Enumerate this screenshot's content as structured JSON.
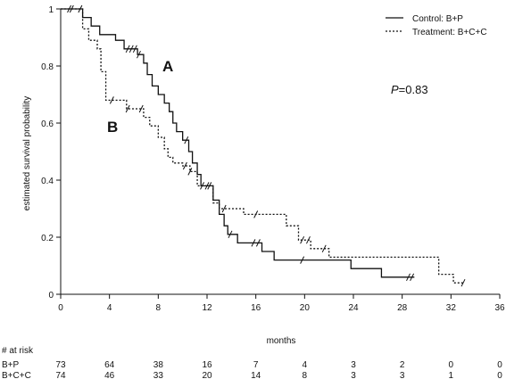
{
  "chart_data": {
    "type": "line",
    "title": "",
    "xlabel": "months",
    "ylabel": "estimated survival probability",
    "xlim": [
      0,
      36
    ],
    "ylim": [
      0,
      1
    ],
    "x_ticks": [
      0,
      4,
      8,
      12,
      16,
      20,
      24,
      28,
      32,
      36
    ],
    "y_ticks": [
      0,
      0.2,
      0.4,
      0.6,
      0.8,
      1
    ],
    "y_tick_labels": [
      "0",
      "0.2",
      "0.4",
      "0.6",
      "0.8",
      "1"
    ],
    "grid": false,
    "legend_position": "top-right",
    "series": [
      {
        "name": "Control: B+P",
        "style": "solid",
        "curve_label": "A",
        "steps": [
          [
            0,
            1.0
          ],
          [
            1.8,
            0.97
          ],
          [
            2.5,
            0.94
          ],
          [
            3.2,
            0.91
          ],
          [
            4.5,
            0.89
          ],
          [
            5.2,
            0.86
          ],
          [
            6.3,
            0.84
          ],
          [
            6.8,
            0.81
          ],
          [
            7.1,
            0.77
          ],
          [
            7.5,
            0.73
          ],
          [
            8.0,
            0.7
          ],
          [
            8.5,
            0.67
          ],
          [
            8.9,
            0.64
          ],
          [
            9.2,
            0.6
          ],
          [
            9.5,
            0.57
          ],
          [
            10.0,
            0.54
          ],
          [
            10.5,
            0.5
          ],
          [
            10.8,
            0.46
          ],
          [
            11.2,
            0.42
          ],
          [
            11.5,
            0.38
          ],
          [
            12.5,
            0.33
          ],
          [
            13.0,
            0.28
          ],
          [
            13.4,
            0.24
          ],
          [
            13.7,
            0.21
          ],
          [
            14.5,
            0.18
          ],
          [
            16.5,
            0.15
          ],
          [
            17.5,
            0.12
          ],
          [
            23.8,
            0.09
          ],
          [
            26.3,
            0.06
          ],
          [
            29.0,
            0.06
          ]
        ],
        "censor_marks": [
          0.7,
          5.5,
          5.8,
          6.1,
          6.4,
          10.3,
          11.6,
          12.0,
          13.9,
          15.8,
          16.2,
          19.8,
          28.5,
          28.8
        ]
      },
      {
        "name": "Treatment: B+C+C",
        "style": "dotted",
        "curve_label": "B",
        "steps": [
          [
            0,
            1.0
          ],
          [
            1.8,
            0.93
          ],
          [
            2.3,
            0.89
          ],
          [
            3.0,
            0.86
          ],
          [
            3.3,
            0.78
          ],
          [
            3.7,
            0.68
          ],
          [
            5.4,
            0.65
          ],
          [
            6.8,
            0.62
          ],
          [
            7.3,
            0.59
          ],
          [
            8.0,
            0.55
          ],
          [
            8.5,
            0.51
          ],
          [
            8.8,
            0.48
          ],
          [
            9.2,
            0.46
          ],
          [
            10.0,
            0.45
          ],
          [
            10.6,
            0.43
          ],
          [
            11.2,
            0.38
          ],
          [
            12.5,
            0.32
          ],
          [
            13.0,
            0.3
          ],
          [
            15.0,
            0.28
          ],
          [
            16.5,
            0.28
          ],
          [
            18.5,
            0.24
          ],
          [
            19.5,
            0.19
          ],
          [
            20.5,
            0.16
          ],
          [
            22.0,
            0.13
          ],
          [
            31.0,
            0.07
          ],
          [
            32.2,
            0.04
          ],
          [
            33.0,
            0.04
          ]
        ],
        "censor_marks": [
          0.9,
          1.6,
          4.2,
          5.5,
          6.6,
          10.2,
          10.6,
          12.2,
          13.4,
          16.0,
          19.8,
          20.3,
          21.6,
          33.0
        ]
      }
    ],
    "annotations": {
      "label_a": "A",
      "label_b": "B",
      "p_prefix": "P",
      "p_value": "=0.83"
    },
    "at_risk": {
      "header": "# at risk",
      "times": [
        0,
        4,
        8,
        12,
        16,
        20,
        24,
        28,
        32,
        36
      ],
      "rows": [
        {
          "label": "B+P",
          "values": [
            "73",
            "64",
            "38",
            "16",
            "7",
            "4",
            "3",
            "2",
            "0",
            "0"
          ]
        },
        {
          "label": "B+C+C",
          "values": [
            "74",
            "46",
            "33",
            "20",
            "14",
            "8",
            "3",
            "3",
            "1",
            "0"
          ]
        }
      ]
    }
  }
}
